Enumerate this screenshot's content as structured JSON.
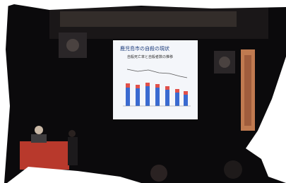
{
  "slide": {
    "title": "鹿児島市の自殺の現状",
    "subtitle": "自殺死亡率と自殺者数の推移"
  }
}
